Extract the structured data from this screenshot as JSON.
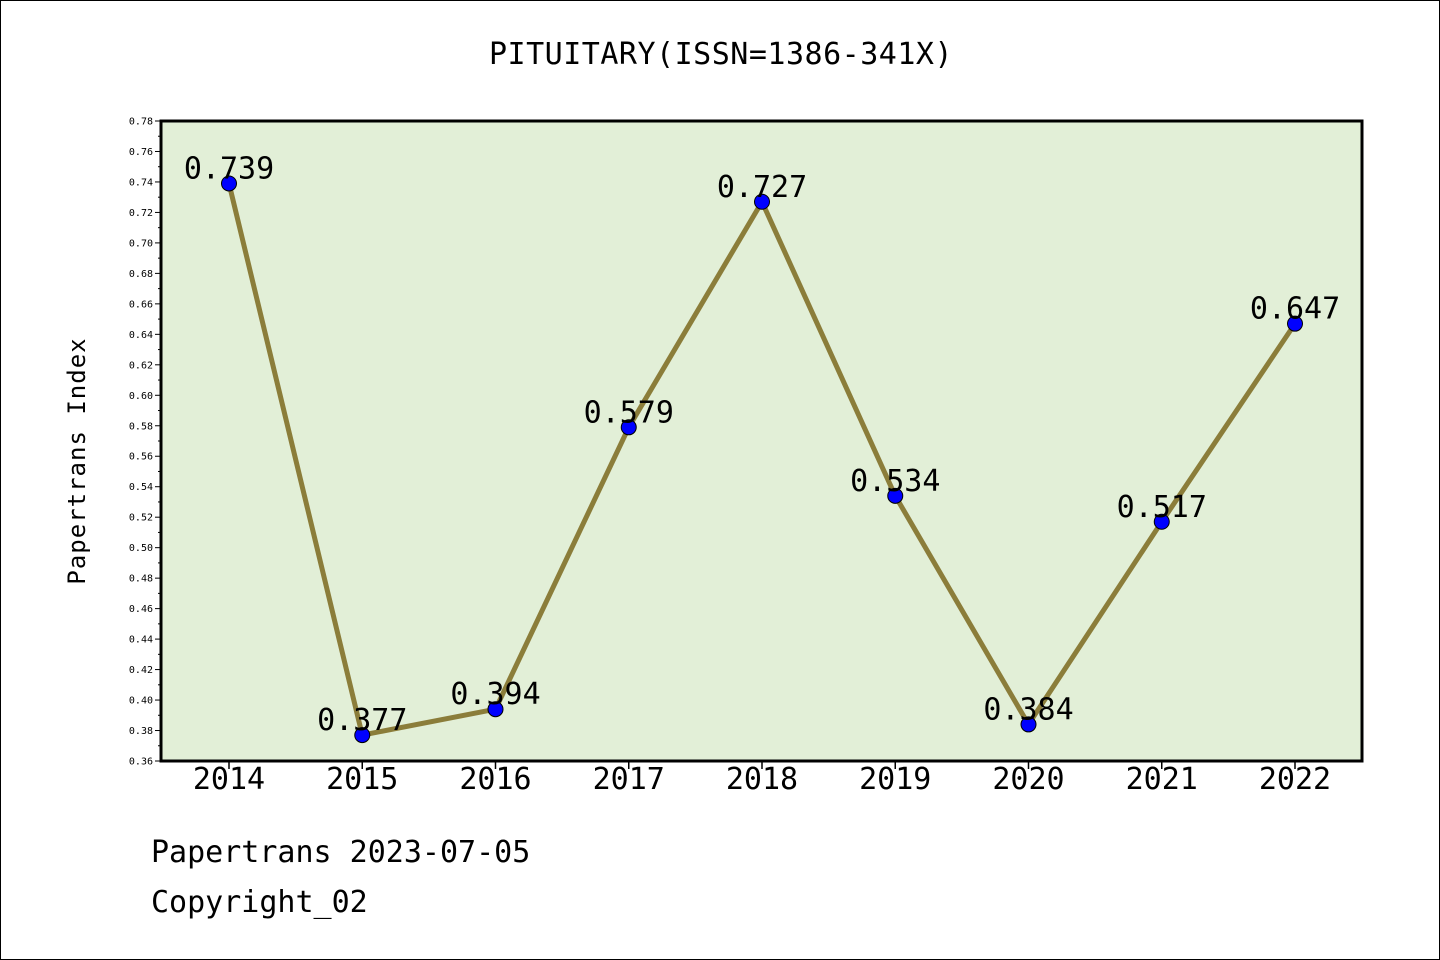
{
  "chart_data": {
    "type": "line",
    "title": "PITUITARY(ISSN=1386-341X)",
    "xlabel": "",
    "ylabel": "Papertrans Index",
    "categories": [
      "2014",
      "2015",
      "2016",
      "2017",
      "2018",
      "2019",
      "2020",
      "2021",
      "2022"
    ],
    "series": [
      {
        "values": [
          0.739,
          0.377,
          0.394,
          0.579,
          0.727,
          0.534,
          0.384,
          0.517,
          0.647
        ]
      }
    ],
    "data_labels": [
      "0.739",
      "0.377",
      "0.394",
      "0.579",
      "0.727",
      "0.534",
      "0.384",
      "0.517",
      "0.647"
    ],
    "ylim": [
      0.36,
      0.78
    ],
    "yticks": [
      "0.36",
      "0.38",
      "0.40",
      "0.42",
      "0.44",
      "0.46",
      "0.48",
      "0.50",
      "0.52",
      "0.54",
      "0.56",
      "0.58",
      "0.60",
      "0.62",
      "0.64",
      "0.66",
      "0.68",
      "0.70",
      "0.72",
      "0.74",
      "0.76",
      "0.78"
    ],
    "grid": false,
    "legend": "none"
  },
  "footer": {
    "date_line": "Papertrans 2023-07-05",
    "copyright": "Copyright_02"
  },
  "colors": {
    "plot_background": "#e2efd7",
    "line": "#8b7d3a",
    "marker": "#0000ff"
  }
}
